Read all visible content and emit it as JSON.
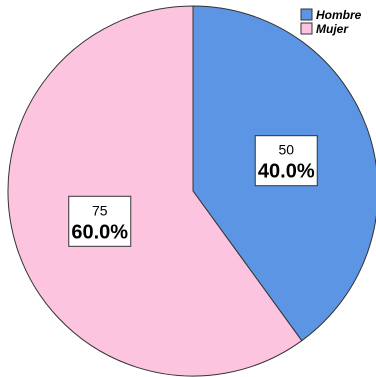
{
  "chart_data": {
    "type": "pie",
    "title": "",
    "categories": [
      "Hombre",
      "Mujer"
    ],
    "values": [
      50,
      75
    ],
    "percent_labels": [
      "40.0%",
      "60.0%"
    ],
    "count_labels": [
      "50",
      "75"
    ],
    "colors": [
      "#5b95e3",
      "#fdc4e0"
    ],
    "legend": {
      "placement": "top-right",
      "items": [
        {
          "label": "Hombre",
          "color": "#5b95e3"
        },
        {
          "label": "Mujer",
          "color": "#fdc4e0"
        }
      ]
    }
  }
}
